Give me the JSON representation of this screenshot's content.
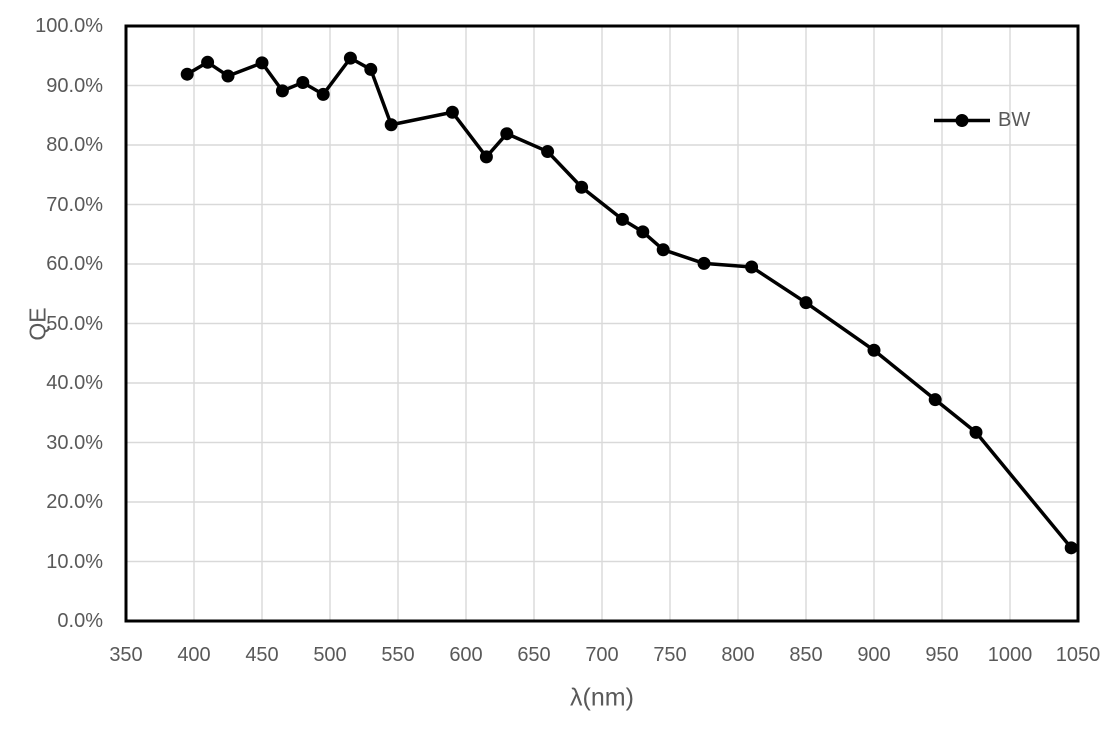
{
  "chart_data": {
    "type": "line",
    "title": "",
    "xlabel": "λ(nm)",
    "ylabel": "QE",
    "x": [
      395,
      410,
      425,
      450,
      465,
      480,
      495,
      515,
      530,
      545,
      590,
      615,
      630,
      660,
      685,
      715,
      730,
      745,
      775,
      810,
      850,
      900,
      945,
      975,
      1045
    ],
    "series": [
      {
        "name": "BW",
        "values": [
          91.9,
          93.9,
          91.6,
          93.8,
          89.1,
          90.5,
          88.5,
          94.6,
          92.7,
          83.4,
          85.5,
          78.0,
          81.9,
          78.9,
          72.9,
          67.5,
          65.4,
          62.4,
          60.1,
          59.5,
          53.5,
          45.5,
          37.2,
          31.7,
          12.3
        ]
      }
    ],
    "xlim": [
      350,
      1050
    ],
    "ylim": [
      0,
      100
    ],
    "x_ticks": {
      "values": [
        350,
        400,
        450,
        500,
        550,
        600,
        650,
        700,
        750,
        800,
        850,
        900,
        950,
        1000,
        1050
      ],
      "labels": [
        "350",
        "400",
        "450",
        "500",
        "550",
        "600",
        "650",
        "700",
        "750",
        "800",
        "850",
        "900",
        "950",
        "1000",
        "1050"
      ]
    },
    "y_ticks": {
      "values": [
        0,
        10,
        20,
        30,
        40,
        50,
        60,
        70,
        80,
        90,
        100
      ],
      "labels": [
        "0.0%",
        "10.0%",
        "20.0%",
        "30.0%",
        "40.0%",
        "50.0%",
        "60.0%",
        "70.0%",
        "80.0%",
        "90.0%",
        "100.0%"
      ]
    },
    "grid": true,
    "legend_position": "top-right-inside"
  },
  "colors": {
    "background": "#ffffff",
    "line": "#000000",
    "marker": "#000000",
    "grid": "#d9d9d9",
    "axis_border": "#000000",
    "tick_text": "#595959",
    "axis_title_text": "#595959",
    "legend_text": "#595959"
  }
}
